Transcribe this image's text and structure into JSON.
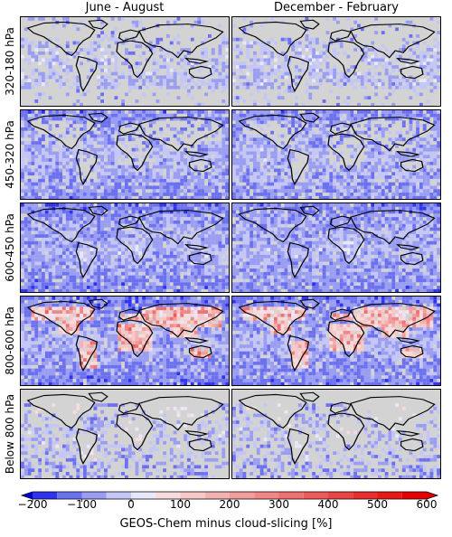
{
  "columns": [
    "June - August",
    "December - February"
  ],
  "rows": [
    "320-180 hPa",
    "450-320 hPa",
    "600-450 hPa",
    "800-600 hPa",
    "Below 800 hPa"
  ],
  "colorbar": {
    "label": "GEOS-Chem minus cloud-slicing [%]",
    "ticks": [
      "−200",
      "−100",
      "0",
      "100",
      "200",
      "300",
      "400",
      "500",
      "600"
    ],
    "tick_values": [
      -200,
      -100,
      0,
      100,
      200,
      300,
      400,
      500,
      600
    ],
    "boundaries": [
      -200,
      -150,
      -100,
      -50,
      0,
      50,
      100,
      150,
      200,
      250,
      300,
      350,
      400,
      450,
      500,
      550,
      600
    ],
    "colors": [
      "#2f33ee",
      "#6b70f0",
      "#9a9ef3",
      "#c4c6f7",
      "#e8e8fa",
      "#f6dcdc",
      "#f6c8c8",
      "#f3b2b2",
      "#f29c9c",
      "#f08686",
      "#ee7070",
      "#ec5a5a",
      "#ea4444",
      "#e82e2e",
      "#e61818",
      "#e40000"
    ],
    "extend": "both"
  },
  "colors": {
    "background": "#d3d3d3",
    "coast": "#000000",
    "negative": "#6b70f0",
    "positive": "#ea4444"
  }
}
